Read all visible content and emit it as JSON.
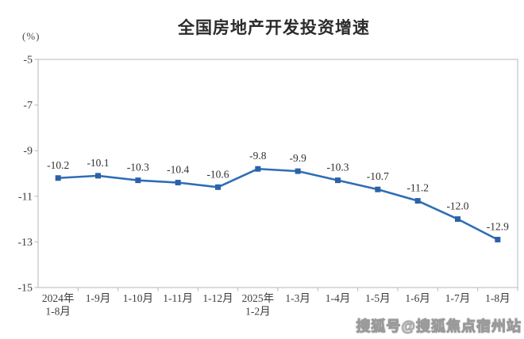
{
  "watermark": "搜狐号@搜狐焦点宿州站",
  "chart_data": {
    "type": "line",
    "title": "全国房地产开发投资增速",
    "ylabel": "(%)",
    "xlabel": "",
    "categories": [
      "2024年\n1-8月",
      "1-9月",
      "1-10月",
      "1-11月",
      "1-12月",
      "2025年\n1-2月",
      "1-3月",
      "1-4月",
      "1-5月",
      "1-6月",
      "1-7月",
      "1-8月"
    ],
    "values": [
      -10.2,
      -10.1,
      -10.3,
      -10.4,
      -10.6,
      -9.8,
      -9.9,
      -10.3,
      -10.7,
      -11.2,
      -12.0,
      -12.9
    ],
    "data_labels": [
      "-10.2",
      "-10.1",
      "-10.3",
      "-10.4",
      "-10.6",
      "-9.8",
      "-9.9",
      "-10.3",
      "-10.7",
      "-11.2",
      "-12.0",
      "-12.9"
    ],
    "ylim": [
      -15,
      -5
    ],
    "yticks": [
      -5,
      -7,
      -9,
      -11,
      -13,
      -15
    ],
    "grid": false,
    "legend": "none",
    "line_color": "#2e6eb5",
    "marker_color": "#2a62a8",
    "axis_color": "#b7b7b7",
    "tick_text_color": "#3c3c3c",
    "label_text_color": "#303030"
  }
}
